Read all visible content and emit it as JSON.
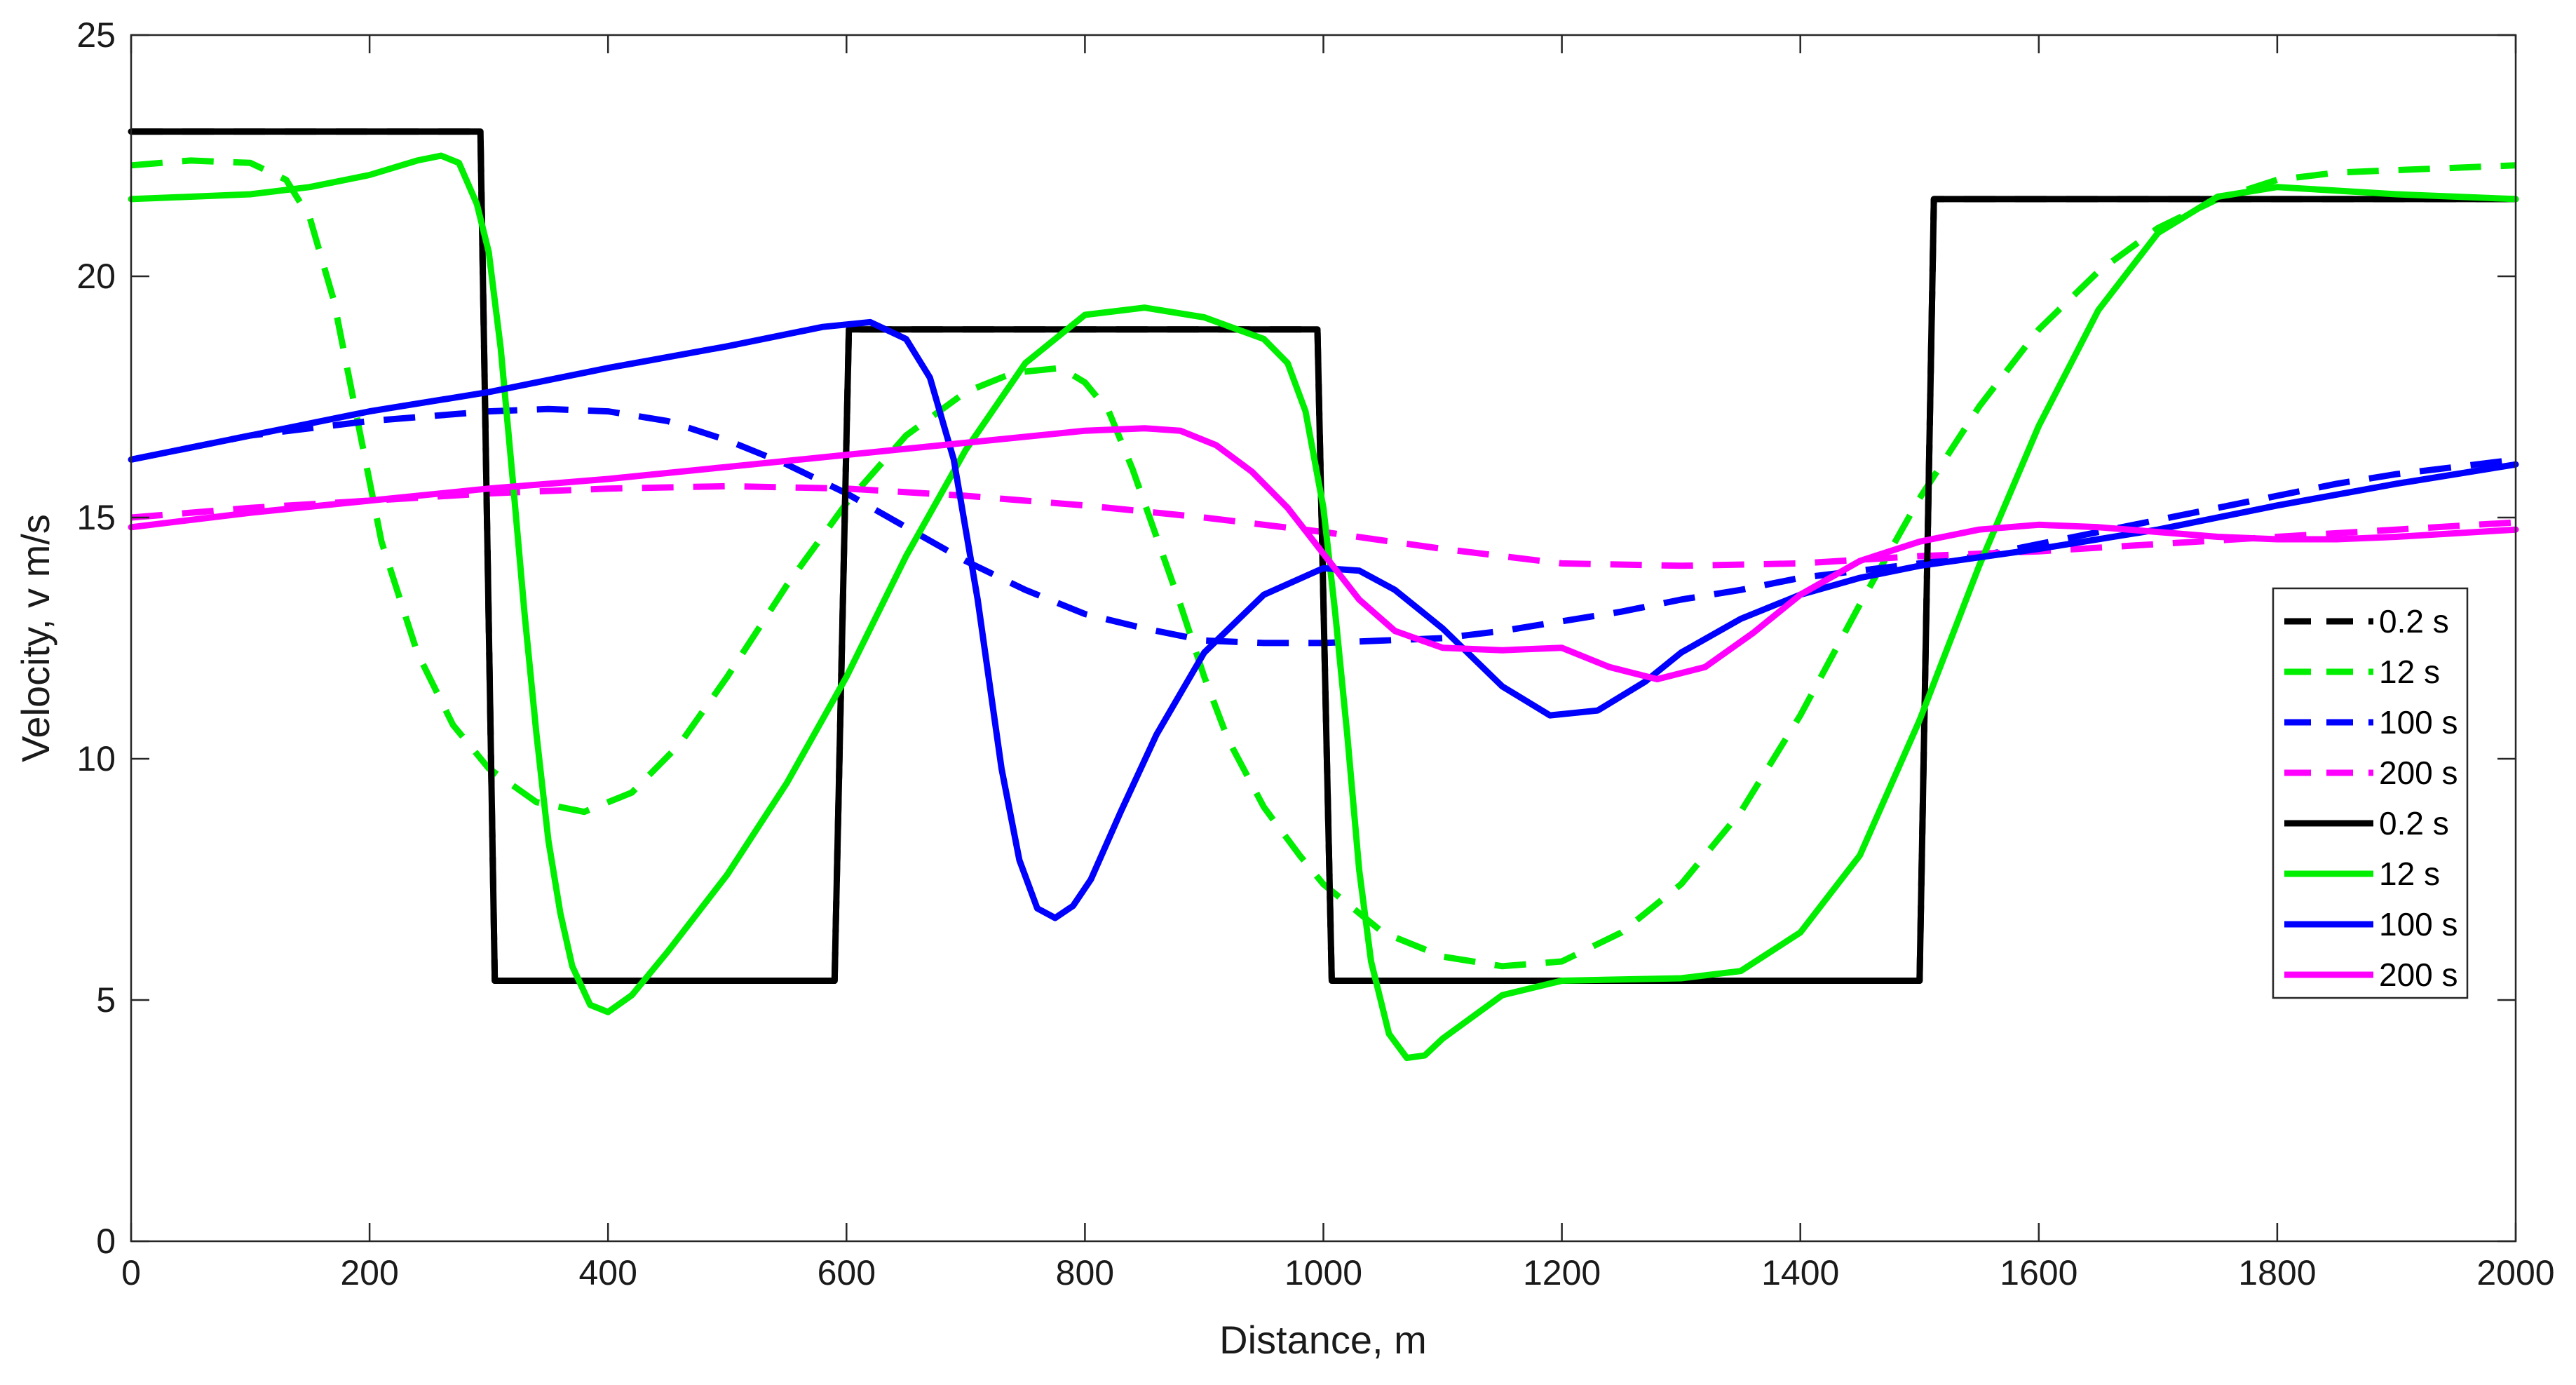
{
  "chart_data": {
    "type": "line",
    "title": "",
    "xlabel": "Distance, m",
    "ylabel": "Velocity, v m/s",
    "xlim": [
      0,
      2000
    ],
    "ylim": [
      0,
      25
    ],
    "xticks": [
      0,
      200,
      400,
      600,
      800,
      1000,
      1200,
      1400,
      1600,
      1800,
      2000
    ],
    "yticks": [
      0,
      5,
      10,
      15,
      20,
      25
    ],
    "grid": false,
    "legend_position": "right",
    "series": [
      {
        "name": "0.2 s",
        "style": "dashed",
        "color": "#000000",
        "points": [
          [
            0,
            23
          ],
          [
            293,
            23
          ],
          [
            305,
            5.4
          ],
          [
            590,
            5.4
          ],
          [
            602,
            18.9
          ],
          [
            995,
            18.9
          ],
          [
            1007,
            5.4
          ],
          [
            1500,
            5.4
          ],
          [
            1512,
            21.6
          ],
          [
            2000,
            21.6
          ]
        ]
      },
      {
        "name": "12 s",
        "style": "dashed",
        "color": "#00ee00",
        "points": [
          [
            0,
            22.3
          ],
          [
            50,
            22.4
          ],
          [
            100,
            22.35
          ],
          [
            130,
            22
          ],
          [
            150,
            21.2
          ],
          [
            170,
            19.5
          ],
          [
            190,
            17
          ],
          [
            210,
            14.5
          ],
          [
            240,
            12.2
          ],
          [
            270,
            10.7
          ],
          [
            300,
            9.8
          ],
          [
            340,
            9.1
          ],
          [
            380,
            8.9
          ],
          [
            420,
            9.3
          ],
          [
            460,
            10.3
          ],
          [
            500,
            11.7
          ],
          [
            550,
            13.6
          ],
          [
            600,
            15.3
          ],
          [
            650,
            16.7
          ],
          [
            700,
            17.6
          ],
          [
            740,
            18
          ],
          [
            780,
            18.1
          ],
          [
            800,
            17.8
          ],
          [
            820,
            17.2
          ],
          [
            840,
            16
          ],
          [
            860,
            14.6
          ],
          [
            880,
            13.2
          ],
          [
            900,
            11.7
          ],
          [
            920,
            10.4
          ],
          [
            950,
            9
          ],
          [
            980,
            8
          ],
          [
            1000,
            7.4
          ],
          [
            1050,
            6.4
          ],
          [
            1100,
            5.9
          ],
          [
            1150,
            5.7
          ],
          [
            1200,
            5.8
          ],
          [
            1250,
            6.4
          ],
          [
            1300,
            7.4
          ],
          [
            1350,
            8.9
          ],
          [
            1400,
            10.9
          ],
          [
            1450,
            13.2
          ],
          [
            1500,
            15.4
          ],
          [
            1550,
            17.3
          ],
          [
            1600,
            18.9
          ],
          [
            1650,
            20.1
          ],
          [
            1700,
            21
          ],
          [
            1750,
            21.6
          ],
          [
            1800,
            22
          ],
          [
            1850,
            22.15
          ],
          [
            1900,
            22.2
          ],
          [
            2000,
            22.3
          ]
        ]
      },
      {
        "name": "100 s",
        "style": "dashed",
        "color": "#0000ff",
        "points": [
          [
            0,
            16.2
          ],
          [
            100,
            16.7
          ],
          [
            200,
            17
          ],
          [
            300,
            17.2
          ],
          [
            350,
            17.25
          ],
          [
            400,
            17.2
          ],
          [
            450,
            17
          ],
          [
            500,
            16.6
          ],
          [
            550,
            16.1
          ],
          [
            600,
            15.5
          ],
          [
            650,
            14.8
          ],
          [
            700,
            14.1
          ],
          [
            750,
            13.5
          ],
          [
            800,
            13
          ],
          [
            850,
            12.7
          ],
          [
            900,
            12.45
          ],
          [
            950,
            12.4
          ],
          [
            1000,
            12.4
          ],
          [
            1050,
            12.45
          ],
          [
            1100,
            12.5
          ],
          [
            1150,
            12.65
          ],
          [
            1200,
            12.85
          ],
          [
            1250,
            13.05
          ],
          [
            1300,
            13.3
          ],
          [
            1350,
            13.5
          ],
          [
            1400,
            13.75
          ],
          [
            1450,
            13.9
          ],
          [
            1500,
            14.05
          ],
          [
            1550,
            14.2
          ],
          [
            1600,
            14.45
          ],
          [
            1650,
            14.7
          ],
          [
            1700,
            14.95
          ],
          [
            1750,
            15.2
          ],
          [
            1800,
            15.45
          ],
          [
            1850,
            15.7
          ],
          [
            1900,
            15.9
          ],
          [
            1950,
            16.05
          ],
          [
            2000,
            16.2
          ]
        ]
      },
      {
        "name": "200 s",
        "style": "dashed",
        "color": "#ff00ff",
        "points": [
          [
            0,
            15
          ],
          [
            100,
            15.2
          ],
          [
            200,
            15.35
          ],
          [
            300,
            15.5
          ],
          [
            400,
            15.6
          ],
          [
            500,
            15.65
          ],
          [
            600,
            15.6
          ],
          [
            700,
            15.45
          ],
          [
            800,
            15.25
          ],
          [
            900,
            15
          ],
          [
            1000,
            14.7
          ],
          [
            1100,
            14.35
          ],
          [
            1200,
            14.05
          ],
          [
            1300,
            14
          ],
          [
            1400,
            14.05
          ],
          [
            1500,
            14.2
          ],
          [
            1600,
            14.3
          ],
          [
            1700,
            14.45
          ],
          [
            1800,
            14.6
          ],
          [
            1900,
            14.75
          ],
          [
            2000,
            14.9
          ]
        ]
      },
      {
        "name": "0.2 s",
        "style": "solid",
        "color": "#000000",
        "points": [
          [
            0,
            23
          ],
          [
            293,
            23
          ],
          [
            305,
            5.4
          ],
          [
            590,
            5.4
          ],
          [
            602,
            18.9
          ],
          [
            995,
            18.9
          ],
          [
            1007,
            5.4
          ],
          [
            1500,
            5.4
          ],
          [
            1512,
            21.6
          ],
          [
            2000,
            21.6
          ]
        ]
      },
      {
        "name": "12 s",
        "style": "solid",
        "color": "#00ee00",
        "points": [
          [
            0,
            21.6
          ],
          [
            50,
            21.65
          ],
          [
            100,
            21.7
          ],
          [
            150,
            21.85
          ],
          [
            200,
            22.1
          ],
          [
            240,
            22.4
          ],
          [
            260,
            22.5
          ],
          [
            275,
            22.35
          ],
          [
            290,
            21.5
          ],
          [
            300,
            20.5
          ],
          [
            310,
            18.5
          ],
          [
            320,
            15.8
          ],
          [
            330,
            13
          ],
          [
            340,
            10.5
          ],
          [
            350,
            8.3
          ],
          [
            360,
            6.8
          ],
          [
            370,
            5.7
          ],
          [
            385,
            4.9
          ],
          [
            400,
            4.75
          ],
          [
            420,
            5.1
          ],
          [
            450,
            6
          ],
          [
            500,
            7.6
          ],
          [
            550,
            9.5
          ],
          [
            600,
            11.7
          ],
          [
            650,
            14.2
          ],
          [
            700,
            16.4
          ],
          [
            750,
            18.2
          ],
          [
            800,
            19.2
          ],
          [
            850,
            19.35
          ],
          [
            900,
            19.15
          ],
          [
            950,
            18.7
          ],
          [
            970,
            18.2
          ],
          [
            985,
            17.2
          ],
          [
            1000,
            15.2
          ],
          [
            1010,
            13
          ],
          [
            1020,
            10.5
          ],
          [
            1030,
            7.7
          ],
          [
            1040,
            5.8
          ],
          [
            1055,
            4.3
          ],
          [
            1070,
            3.8
          ],
          [
            1085,
            3.85
          ],
          [
            1100,
            4.2
          ],
          [
            1150,
            5.1
          ],
          [
            1200,
            5.4
          ],
          [
            1300,
            5.45
          ],
          [
            1350,
            5.6
          ],
          [
            1400,
            6.4
          ],
          [
            1450,
            8
          ],
          [
            1500,
            10.8
          ],
          [
            1550,
            14
          ],
          [
            1600,
            16.9
          ],
          [
            1650,
            19.3
          ],
          [
            1700,
            20.9
          ],
          [
            1750,
            21.65
          ],
          [
            1800,
            21.85
          ],
          [
            1900,
            21.7
          ],
          [
            2000,
            21.6
          ]
        ]
      },
      {
        "name": "100 s",
        "style": "solid",
        "color": "#0000ff",
        "points": [
          [
            0,
            16.2
          ],
          [
            100,
            16.7
          ],
          [
            200,
            17.2
          ],
          [
            300,
            17.6
          ],
          [
            400,
            18.1
          ],
          [
            500,
            18.55
          ],
          [
            580,
            18.95
          ],
          [
            620,
            19.05
          ],
          [
            650,
            18.7
          ],
          [
            670,
            17.9
          ],
          [
            690,
            16.2
          ],
          [
            710,
            13.3
          ],
          [
            730,
            9.8
          ],
          [
            745,
            7.9
          ],
          [
            760,
            6.9
          ],
          [
            775,
            6.7
          ],
          [
            790,
            6.95
          ],
          [
            805,
            7.5
          ],
          [
            830,
            8.9
          ],
          [
            860,
            10.5
          ],
          [
            900,
            12.2
          ],
          [
            950,
            13.4
          ],
          [
            1000,
            13.95
          ],
          [
            1030,
            13.9
          ],
          [
            1060,
            13.5
          ],
          [
            1100,
            12.7
          ],
          [
            1150,
            11.5
          ],
          [
            1190,
            10.9
          ],
          [
            1230,
            11
          ],
          [
            1270,
            11.6
          ],
          [
            1300,
            12.2
          ],
          [
            1350,
            12.9
          ],
          [
            1400,
            13.4
          ],
          [
            1450,
            13.75
          ],
          [
            1500,
            14
          ],
          [
            1600,
            14.35
          ],
          [
            1700,
            14.75
          ],
          [
            1800,
            15.25
          ],
          [
            1900,
            15.7
          ],
          [
            2000,
            16.1
          ]
        ]
      },
      {
        "name": "200 s",
        "style": "solid",
        "color": "#ff00ff",
        "points": [
          [
            0,
            14.8
          ],
          [
            100,
            15.1
          ],
          [
            200,
            15.35
          ],
          [
            300,
            15.6
          ],
          [
            400,
            15.8
          ],
          [
            500,
            16.05
          ],
          [
            600,
            16.3
          ],
          [
            700,
            16.55
          ],
          [
            800,
            16.8
          ],
          [
            850,
            16.85
          ],
          [
            880,
            16.8
          ],
          [
            910,
            16.5
          ],
          [
            940,
            15.95
          ],
          [
            970,
            15.2
          ],
          [
            1000,
            14.25
          ],
          [
            1030,
            13.3
          ],
          [
            1060,
            12.65
          ],
          [
            1100,
            12.3
          ],
          [
            1150,
            12.25
          ],
          [
            1200,
            12.3
          ],
          [
            1240,
            11.9
          ],
          [
            1280,
            11.65
          ],
          [
            1320,
            11.9
          ],
          [
            1360,
            12.6
          ],
          [
            1400,
            13.4
          ],
          [
            1450,
            14.1
          ],
          [
            1500,
            14.5
          ],
          [
            1550,
            14.75
          ],
          [
            1600,
            14.85
          ],
          [
            1650,
            14.8
          ],
          [
            1700,
            14.7
          ],
          [
            1750,
            14.6
          ],
          [
            1800,
            14.55
          ],
          [
            1850,
            14.55
          ],
          [
            1900,
            14.6
          ],
          [
            2000,
            14.75
          ]
        ]
      }
    ]
  }
}
